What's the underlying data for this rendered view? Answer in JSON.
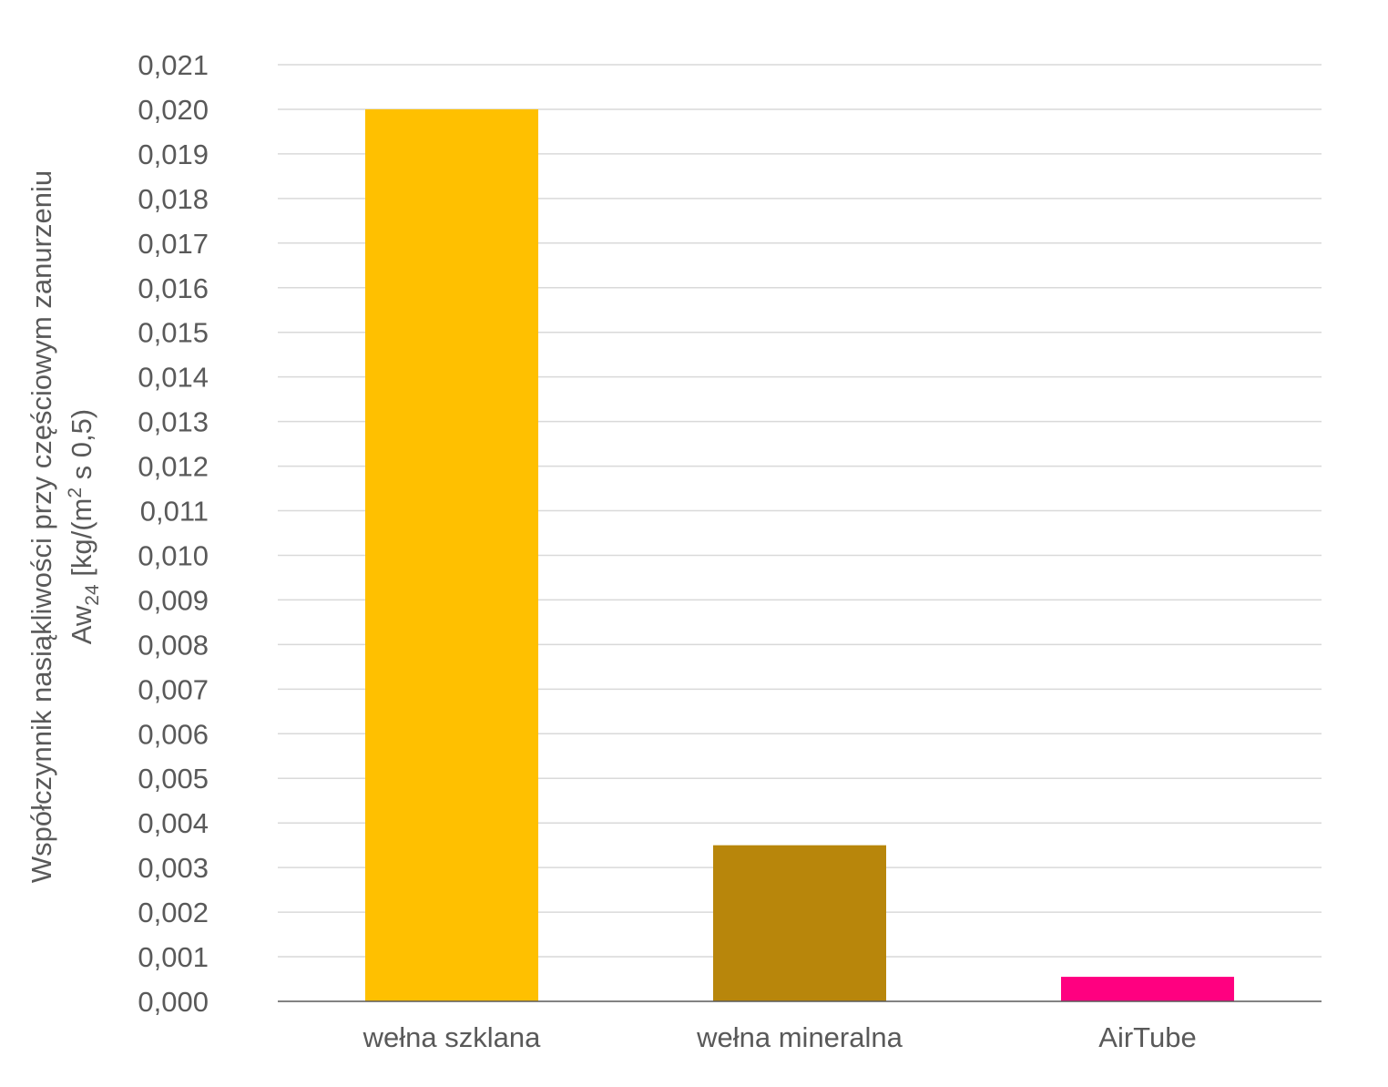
{
  "chart_data": {
    "type": "bar",
    "categories": [
      "wełna szklana",
      "wełna mineralna",
      "AirTube"
    ],
    "values": [
      0.02,
      0.0035,
      0.00055
    ],
    "colors": [
      "#FFC000",
      "#B8860B",
      "#FF0080"
    ],
    "ylim": [
      0,
      0.021
    ],
    "ytick_step": 0.001,
    "ytick_labels": [
      "0,000",
      "0,001",
      "0,002",
      "0,003",
      "0,004",
      "0,005",
      "0,006",
      "0,007",
      "0,008",
      "0,009",
      "0,010",
      "0,011",
      "0,012",
      "0,013",
      "0,014",
      "0,015",
      "0,016",
      "0,017",
      "0,018",
      "0,019",
      "0,020",
      "0,021"
    ],
    "ylabel_line1": "Współczynnik nasiąkliwości przy częściowym zanurzeniu",
    "ylabel_line2_parts": {
      "prefix": "Aw",
      "subscript": "24",
      "middle": " [kg/(m",
      "superscript": "2",
      "suffix": " s 0,5)"
    },
    "grid": true,
    "legend": "none"
  }
}
